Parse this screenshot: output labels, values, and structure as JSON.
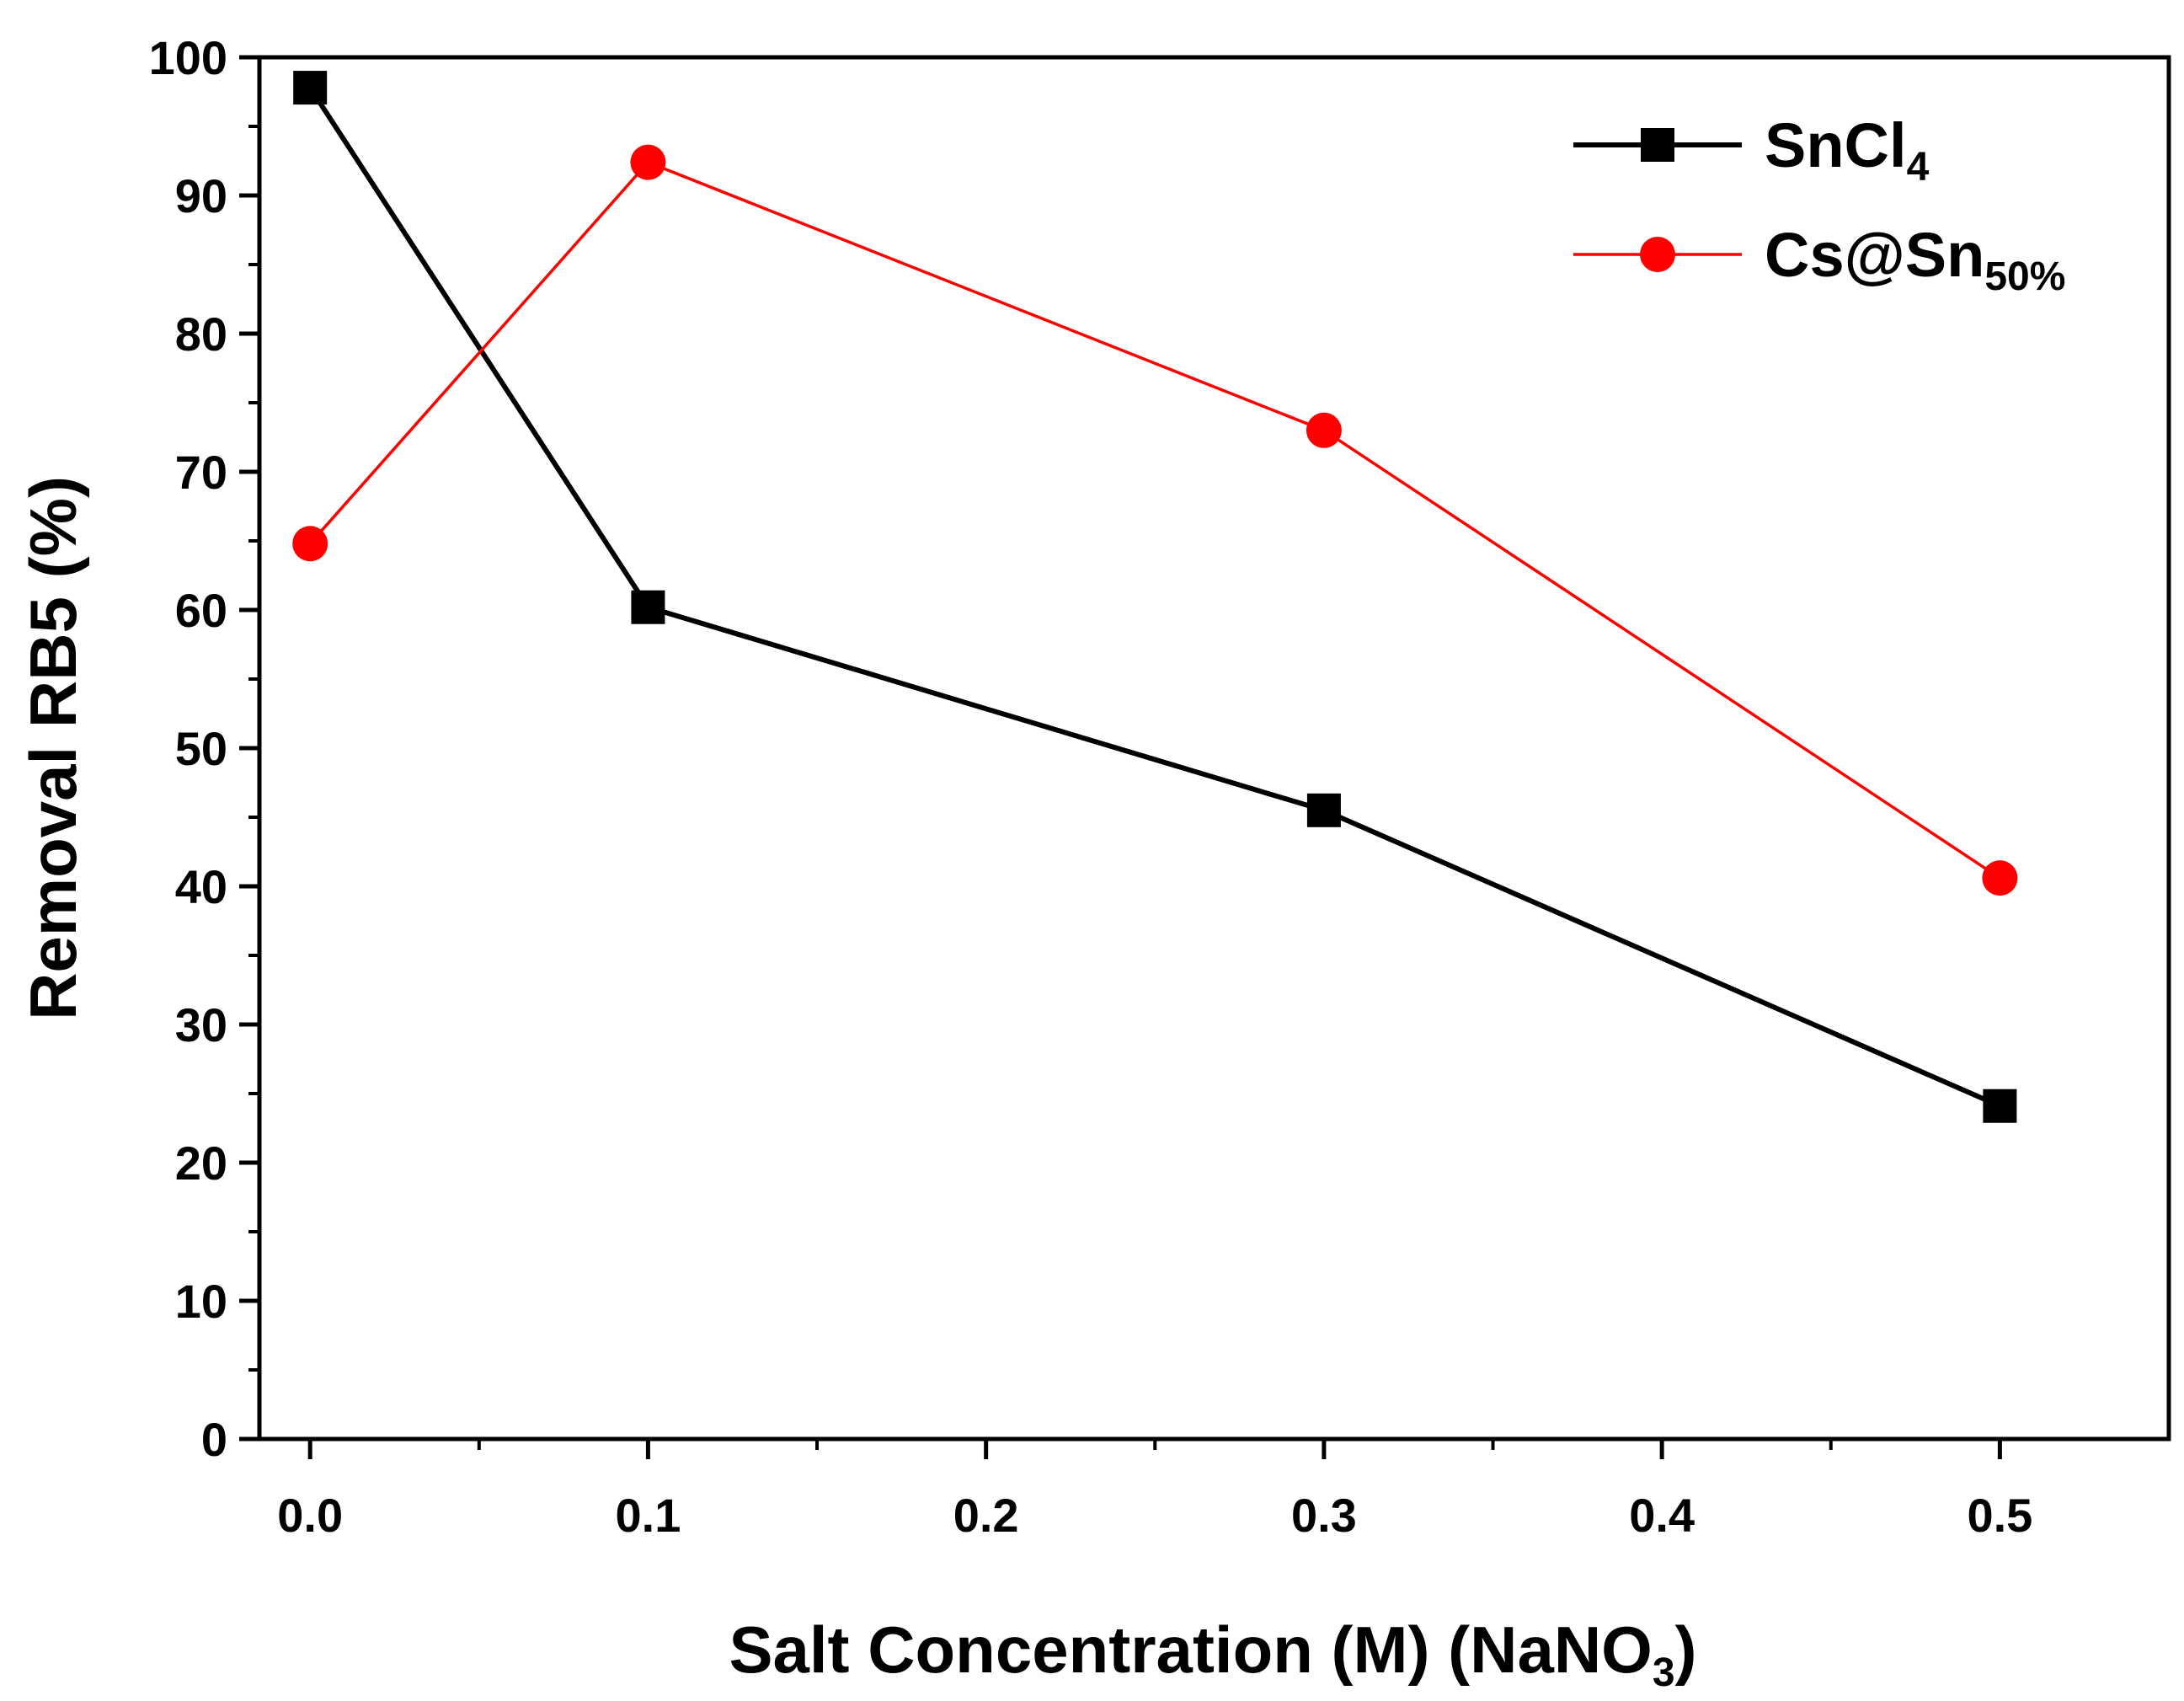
{
  "chart_data": {
    "type": "line",
    "title": "",
    "xlabel": "Salt Concentration (M) (NaNO",
    "xlabel_sub": "3",
    "xlabel_tail": ")",
    "ylabel": "Removal RB5 (%)",
    "xlim": [
      -0.015,
      0.55
    ],
    "ylim": [
      0,
      100
    ],
    "x_ticks": [
      0.0,
      0.1,
      0.2,
      0.3,
      0.4,
      0.5
    ],
    "x_tick_labels": [
      "0.0",
      "0.1",
      "0.2",
      "0.3",
      "0.4",
      "0.5"
    ],
    "y_ticks": [
      0,
      10,
      20,
      30,
      40,
      50,
      60,
      70,
      80,
      90,
      100
    ],
    "y_tick_labels": [
      "0",
      "10",
      "20",
      "30",
      "40",
      "50",
      "60",
      "70",
      "80",
      "90",
      "100"
    ],
    "grid": false,
    "legend_position": "top-right",
    "series": [
      {
        "name": "SnCl",
        "name_sub": "4",
        "color": "#000000",
        "marker": "square",
        "x": [
          0.0,
          0.1,
          0.3,
          0.5
        ],
        "y": [
          97.8,
          60.2,
          45.5,
          24.1
        ]
      },
      {
        "name": "Cs@Sn",
        "name_sub": "50%",
        "color": "#ff0000",
        "marker": "circle",
        "x": [
          0.0,
          0.1,
          0.3,
          0.5
        ],
        "y": [
          64.8,
          92.4,
          73.0,
          40.6
        ]
      }
    ]
  }
}
